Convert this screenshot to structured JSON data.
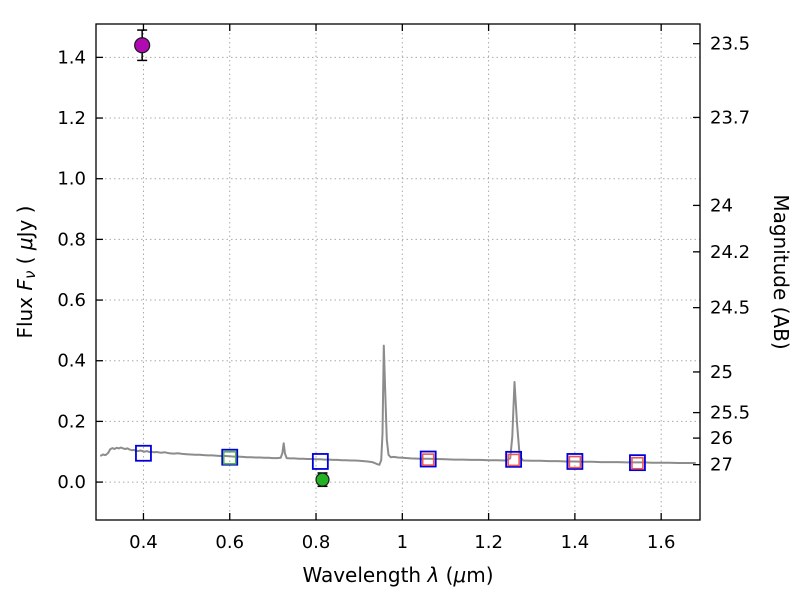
{
  "figure": {
    "background": "#ffffff",
    "frame_color": "#000000",
    "grid_color": "#aaaaaa",
    "tick_color": "#000000"
  },
  "chart_data": {
    "type": "line",
    "title": "",
    "xlabel_parts": [
      {
        "t": "Wavelength  ",
        "i": false
      },
      {
        "t": "λ",
        "i": true
      },
      {
        "t": " (",
        "i": false
      },
      {
        "t": "μ",
        "i": true
      },
      {
        "t": "m)",
        "i": false
      }
    ],
    "ylabel_left_parts": [
      {
        "t": "Flux  ",
        "i": false
      },
      {
        "t": "F",
        "i": true
      },
      {
        "t": "ν",
        "i": true,
        "sub": true
      },
      {
        "t": "  ( ",
        "i": false
      },
      {
        "t": "μ",
        "i": true
      },
      {
        "t": "Jy )",
        "i": false
      }
    ],
    "ylabel_right": "Magnitude (AB)",
    "xlim": [
      0.29,
      1.69
    ],
    "ylim": [
      -0.125,
      1.51
    ],
    "grid": true,
    "xticks": [
      0.4,
      0.6,
      0.8,
      1.0,
      1.2,
      1.4,
      1.6
    ],
    "xtick_labels": [
      "0.4",
      "0.6",
      "0.8",
      "1",
      "1.2",
      "1.4",
      "1.6"
    ],
    "yticks_left": [
      0.0,
      0.2,
      0.4,
      0.6,
      0.8,
      1.0,
      1.2,
      1.4
    ],
    "ytick_left_labels": [
      "0.0",
      "0.2",
      "0.4",
      "0.6",
      "0.8",
      "1.0",
      "1.2",
      "1.4"
    ],
    "yticks_right": [
      {
        "label": "23.5",
        "flux": 1.445
      },
      {
        "label": "23.7",
        "flux": 1.202
      },
      {
        "label": "24",
        "flux": 0.912
      },
      {
        "label": "24.2",
        "flux": 0.759
      },
      {
        "label": "24.5",
        "flux": 0.575
      },
      {
        "label": "25",
        "flux": 0.363
      },
      {
        "label": "25.5",
        "flux": 0.229
      },
      {
        "label": "26",
        "flux": 0.145
      },
      {
        "label": "27",
        "flux": 0.0575
      }
    ],
    "series": [
      {
        "name": "model-spectrum-line",
        "kind": "line",
        "color": "#8c8c8c",
        "width": 2,
        "points": [
          [
            0.3,
            0.086
          ],
          [
            0.306,
            0.091
          ],
          [
            0.312,
            0.089
          ],
          [
            0.318,
            0.096
          ],
          [
            0.323,
            0.108
          ],
          [
            0.328,
            0.112
          ],
          [
            0.333,
            0.109
          ],
          [
            0.338,
            0.113
          ],
          [
            0.343,
            0.111
          ],
          [
            0.348,
            0.114
          ],
          [
            0.353,
            0.111
          ],
          [
            0.358,
            0.109
          ],
          [
            0.363,
            0.111
          ],
          [
            0.368,
            0.107
          ],
          [
            0.373,
            0.105
          ],
          [
            0.378,
            0.106
          ],
          [
            0.383,
            0.103
          ],
          [
            0.388,
            0.102
          ],
          [
            0.393,
            0.104
          ],
          [
            0.398,
            0.102
          ],
          [
            0.403,
            0.1
          ],
          [
            0.408,
            0.102
          ],
          [
            0.413,
            0.099
          ],
          [
            0.418,
            0.1
          ],
          [
            0.424,
            0.098
          ],
          [
            0.43,
            0.099
          ],
          [
            0.44,
            0.097
          ],
          [
            0.45,
            0.098
          ],
          [
            0.46,
            0.095
          ],
          [
            0.47,
            0.094
          ],
          [
            0.48,
            0.095
          ],
          [
            0.49,
            0.093
          ],
          [
            0.5,
            0.092
          ],
          [
            0.51,
            0.091
          ],
          [
            0.52,
            0.09
          ],
          [
            0.53,
            0.09
          ],
          [
            0.54,
            0.089
          ],
          [
            0.55,
            0.088
          ],
          [
            0.56,
            0.088
          ],
          [
            0.57,
            0.087
          ],
          [
            0.58,
            0.086
          ],
          [
            0.59,
            0.086
          ],
          [
            0.6,
            0.085
          ],
          [
            0.61,
            0.084
          ],
          [
            0.62,
            0.084
          ],
          [
            0.63,
            0.083
          ],
          [
            0.64,
            0.082
          ],
          [
            0.65,
            0.082
          ],
          [
            0.66,
            0.081
          ],
          [
            0.67,
            0.081
          ],
          [
            0.68,
            0.08
          ],
          [
            0.69,
            0.08
          ],
          [
            0.7,
            0.079
          ],
          [
            0.71,
            0.079
          ],
          [
            0.718,
            0.08
          ],
          [
            0.722,
            0.096
          ],
          [
            0.725,
            0.128
          ],
          [
            0.728,
            0.094
          ],
          [
            0.732,
            0.079
          ],
          [
            0.74,
            0.078
          ],
          [
            0.75,
            0.078
          ],
          [
            0.76,
            0.077
          ],
          [
            0.77,
            0.077
          ],
          [
            0.78,
            0.076
          ],
          [
            0.79,
            0.076
          ],
          [
            0.8,
            0.075
          ],
          [
            0.81,
            0.075
          ],
          [
            0.82,
            0.074
          ],
          [
            0.83,
            0.074
          ],
          [
            0.84,
            0.073
          ],
          [
            0.85,
            0.073
          ],
          [
            0.86,
            0.072
          ],
          [
            0.87,
            0.072
          ],
          [
            0.88,
            0.071
          ],
          [
            0.89,
            0.071
          ],
          [
            0.9,
            0.07
          ],
          [
            0.91,
            0.069
          ],
          [
            0.92,
            0.068
          ],
          [
            0.93,
            0.066
          ],
          [
            0.936,
            0.063
          ],
          [
            0.942,
            0.059
          ],
          [
            0.947,
            0.057
          ],
          [
            0.951,
            0.072
          ],
          [
            0.954,
            0.16
          ],
          [
            0.957,
            0.45
          ],
          [
            0.96,
            0.31
          ],
          [
            0.964,
            0.14
          ],
          [
            0.968,
            0.09
          ],
          [
            0.973,
            0.082
          ],
          [
            0.98,
            0.083
          ],
          [
            0.99,
            0.081
          ],
          [
            1.0,
            0.08
          ],
          [
            1.02,
            0.078
          ],
          [
            1.04,
            0.077
          ],
          [
            1.06,
            0.077
          ],
          [
            1.08,
            0.076
          ],
          [
            1.1,
            0.075
          ],
          [
            1.12,
            0.074
          ],
          [
            1.14,
            0.074
          ],
          [
            1.16,
            0.073
          ],
          [
            1.18,
            0.073
          ],
          [
            1.2,
            0.072
          ],
          [
            1.22,
            0.072
          ],
          [
            1.24,
            0.071
          ],
          [
            1.25,
            0.078
          ],
          [
            1.255,
            0.15
          ],
          [
            1.26,
            0.33
          ],
          [
            1.266,
            0.19
          ],
          [
            1.272,
            0.085
          ],
          [
            1.28,
            0.071
          ],
          [
            1.3,
            0.07
          ],
          [
            1.32,
            0.07
          ],
          [
            1.34,
            0.069
          ],
          [
            1.36,
            0.069
          ],
          [
            1.38,
            0.068
          ],
          [
            1.4,
            0.068
          ],
          [
            1.42,
            0.067
          ],
          [
            1.44,
            0.067
          ],
          [
            1.46,
            0.066
          ],
          [
            1.48,
            0.066
          ],
          [
            1.5,
            0.066
          ],
          [
            1.52,
            0.065
          ],
          [
            1.54,
            0.065
          ],
          [
            1.56,
            0.065
          ],
          [
            1.58,
            0.064
          ],
          [
            1.6,
            0.064
          ],
          [
            1.62,
            0.064
          ],
          [
            1.64,
            0.063
          ],
          [
            1.66,
            0.063
          ],
          [
            1.68,
            0.063
          ]
        ]
      },
      {
        "name": "model-photometry-blue-squares",
        "kind": "scatter",
        "marker": "open-square",
        "color": "#0000dd",
        "size": 15,
        "stroke": 1.8,
        "points": [
          [
            0.4,
            0.095
          ],
          [
            0.6,
            0.082
          ],
          [
            0.81,
            0.068
          ],
          [
            1.06,
            0.076
          ],
          [
            1.258,
            0.075
          ],
          [
            1.4,
            0.068
          ],
          [
            1.545,
            0.064
          ]
        ]
      },
      {
        "name": "photometry-green-square",
        "kind": "scatter",
        "marker": "open-square",
        "color": "#55b24a",
        "size": 12,
        "stroke": 1.6,
        "points": [
          [
            0.6,
            0.08
          ]
        ]
      },
      {
        "name": "observed-photometry-red-squares",
        "kind": "scatter",
        "marker": "open-square",
        "color": "#ee5555",
        "size": 11,
        "stroke": 1.6,
        "points": [
          [
            1.06,
            0.074
          ],
          [
            1.258,
            0.073
          ],
          [
            1.4,
            0.066
          ],
          [
            1.545,
            0.062
          ]
        ]
      },
      {
        "name": "detection-magenta-point",
        "kind": "scatter",
        "marker": "filled-circle",
        "color": "#b20ab2",
        "edge": "#1a1a1a",
        "size": 7.5,
        "stroke": 1.2,
        "yerr": 0.05,
        "points": [
          [
            0.397,
            1.44
          ]
        ]
      },
      {
        "name": "detection-green-point",
        "kind": "scatter",
        "marker": "filled-circle",
        "color": "#23b223",
        "edge": "#1a1a1a",
        "size": 6.5,
        "stroke": 1.2,
        "yerr": 0.022,
        "points": [
          [
            0.815,
            0.008
          ]
        ]
      }
    ]
  }
}
